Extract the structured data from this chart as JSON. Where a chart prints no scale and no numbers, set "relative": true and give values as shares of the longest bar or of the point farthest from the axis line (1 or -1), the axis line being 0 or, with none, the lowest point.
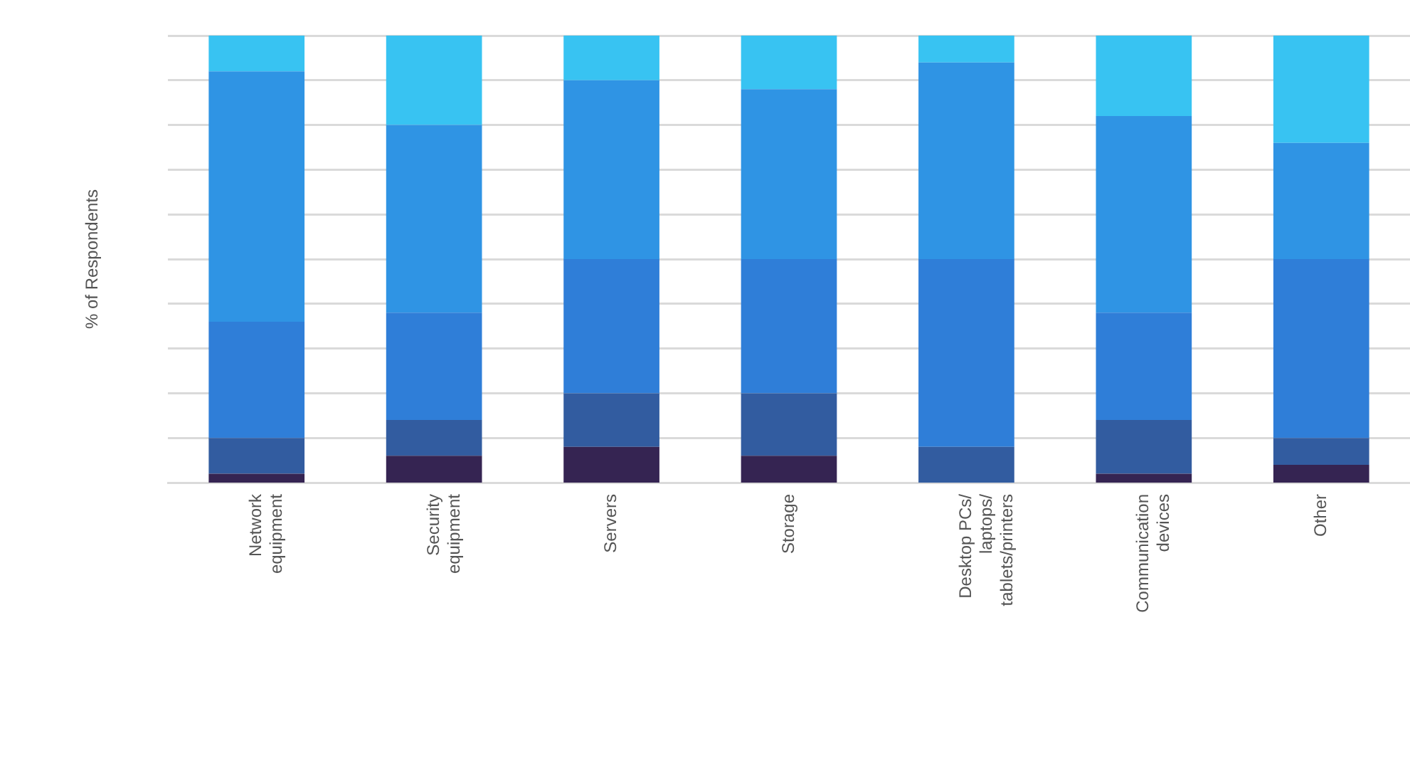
{
  "chart_data": {
    "type": "bar",
    "ylabel": "% of Respondents",
    "stacked": true,
    "relative": true,
    "grid": "y",
    "categories": [
      "Network equipment",
      "Security equipment",
      "Servers",
      "Storage",
      "Desktop PCs/ laptops/ tablets/printers",
      "Communication devices",
      "Other"
    ],
    "series": [
      {
        "color": "#352452",
        "values": [
          0.02,
          0.06,
          0.08,
          0.06,
          0,
          0.02,
          0.04
        ]
      },
      {
        "color": "#325ca0",
        "values": [
          0.08,
          0.08,
          0.12,
          0.14,
          0.08,
          0.12,
          0.06
        ]
      },
      {
        "color": "#2f7ed8",
        "values": [
          0.26,
          0.24,
          0.3,
          0.3,
          0.42,
          0.24,
          0.4
        ]
      },
      {
        "color": "#2f94e4",
        "values": [
          0.56,
          0.42,
          0.4,
          0.38,
          0.44,
          0.44,
          0.26
        ]
      },
      {
        "color": "#38c3f2",
        "values": [
          0.08,
          0.2,
          0.1,
          0.12,
          0.06,
          0.18,
          0.24
        ]
      }
    ]
  }
}
